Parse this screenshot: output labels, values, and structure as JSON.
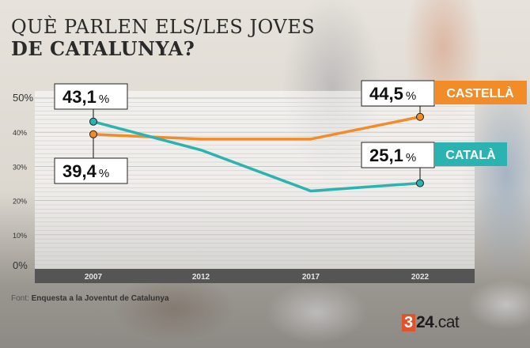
{
  "title_line1": "QUÈ PARLEN ELS/LES JOVES",
  "title_line2": "DE CATALUNYA?",
  "source_label": "Font:",
  "source_text": "Enquesta a la Joventut de Catalunya",
  "logo": {
    "mark": "3",
    "text": "24",
    "suffix": ".cat"
  },
  "colors": {
    "castella": "#f28c28",
    "catala": "#2ab3b1",
    "axis_bar": "#555555",
    "grid": "#bdbdbd"
  },
  "chart_data": {
    "type": "line",
    "title": "QUÈ PARLEN ELS/LES JOVES DE CATALUNYA?",
    "x": [
      "2007",
      "2012",
      "2017",
      "2022"
    ],
    "ylim": [
      0,
      50
    ],
    "yticks": [
      0,
      10,
      20,
      30,
      40,
      50
    ],
    "ytick_labels": [
      "0%",
      "10%",
      "20%",
      "30%",
      "40%",
      "50%"
    ],
    "grid": true,
    "series": [
      {
        "name": "CASTELLÀ",
        "values": [
          39.4,
          38,
          38,
          44.5
        ],
        "color": "#f28c28"
      },
      {
        "name": "CATALÀ",
        "values": [
          43.1,
          34.8,
          22.8,
          25.1
        ],
        "color": "#2ab3b1"
      }
    ],
    "annotations": [
      {
        "series": "CATALÀ",
        "x": "2007",
        "value": "43,1",
        "unit": "%"
      },
      {
        "series": "CASTELLÀ",
        "x": "2007",
        "value": "39,4",
        "unit": "%"
      },
      {
        "series": "CASTELLÀ",
        "x": "2022",
        "value": "44,5",
        "unit": "%"
      },
      {
        "series": "CATALÀ",
        "x": "2022",
        "value": "25,1",
        "unit": "%"
      }
    ]
  }
}
